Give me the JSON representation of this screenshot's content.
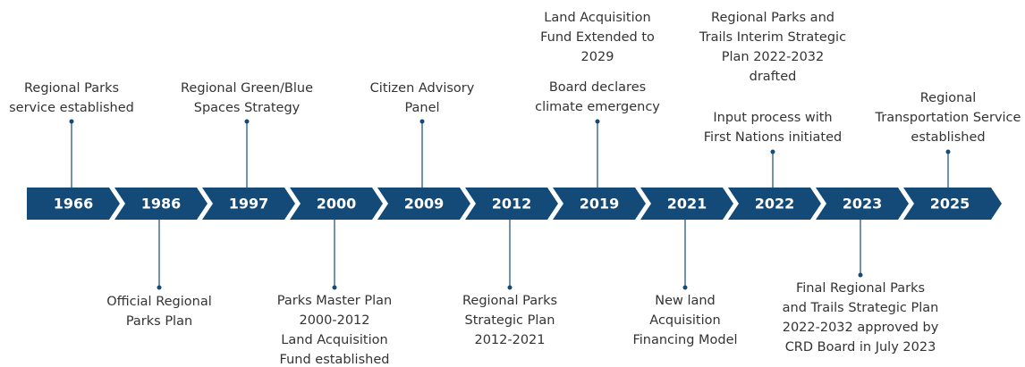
{
  "milestones": [
    {
      "year": "1966",
      "above": [
        [
          "Regional Parks",
          "service established"
        ]
      ]
    },
    {
      "year": "1986",
      "below": [
        [
          "Official Regional",
          "Parks Plan"
        ]
      ]
    },
    {
      "year": "1997",
      "above": [
        [
          "Regional Green/Blue",
          "Spaces Strategy"
        ]
      ]
    },
    {
      "year": "2000",
      "below": [
        [
          "Parks Master Plan",
          "2000-2012"
        ],
        [
          "Land Acquisition",
          "Fund established"
        ]
      ]
    },
    {
      "year": "2009",
      "above": [
        [
          "Citizen Advisory",
          "Panel"
        ]
      ]
    },
    {
      "year": "2012",
      "below": [
        [
          "Regional Parks",
          "Strategic Plan",
          "2012-2021"
        ]
      ]
    },
    {
      "year": "2019",
      "above": [
        [
          "Land Acquisition",
          "Fund Extended to",
          "2029"
        ],
        [
          "Board declares",
          "climate emergency"
        ]
      ]
    },
    {
      "year": "2021",
      "below": [
        [
          "New land",
          "Acquisition",
          "Financing Model"
        ]
      ]
    },
    {
      "year": "2022",
      "above": [
        [
          "Regional Parks and",
          "Trails Interim Strategic",
          "Plan 2022-2032",
          "drafted"
        ],
        [
          "Input process with",
          "First Nations initiated"
        ]
      ]
    },
    {
      "year": "2023",
      "below": [
        [
          "Final Regional Parks",
          "and Trails Strategic Plan",
          "2022-2032 approved by",
          "CRD Board in July 2023"
        ]
      ]
    },
    {
      "year": "2025",
      "above": [
        [
          "Regional",
          "Transportation Service",
          "established"
        ]
      ]
    }
  ]
}
